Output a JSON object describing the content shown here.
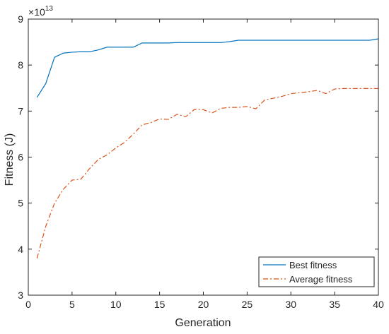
{
  "chart_data": {
    "type": "line",
    "title": "",
    "xlabel": "Generation",
    "ylabel": "Fitness (J)",
    "y_exponent_base": "10",
    "y_exponent_power": "13",
    "xlim": [
      0,
      40
    ],
    "ylim": [
      3,
      9
    ],
    "xticks": [
      0,
      5,
      10,
      15,
      20,
      25,
      30,
      35,
      40
    ],
    "yticks": [
      3,
      4,
      5,
      6,
      7,
      8,
      9
    ],
    "grid": false,
    "legend_position": "bottom-right",
    "x": [
      1,
      2,
      3,
      4,
      5,
      6,
      7,
      8,
      9,
      10,
      11,
      12,
      13,
      14,
      15,
      16,
      17,
      18,
      19,
      20,
      21,
      22,
      23,
      24,
      25,
      26,
      27,
      28,
      29,
      30,
      31,
      32,
      33,
      34,
      35,
      36,
      37,
      38,
      39,
      40
    ],
    "series": [
      {
        "name": "Best fitness",
        "color": "#0072BD",
        "line_style": "solid",
        "values": [
          7.3,
          7.6,
          8.17,
          8.26,
          8.28,
          8.29,
          8.29,
          8.33,
          8.39,
          8.39,
          8.39,
          8.39,
          8.48,
          8.48,
          8.48,
          8.48,
          8.49,
          8.49,
          8.49,
          8.49,
          8.49,
          8.49,
          8.51,
          8.54,
          8.54,
          8.54,
          8.54,
          8.54,
          8.54,
          8.54,
          8.54,
          8.54,
          8.54,
          8.54,
          8.54,
          8.54,
          8.54,
          8.54,
          8.54,
          8.57
        ]
      },
      {
        "name": "Average fitness",
        "color": "#D95319",
        "line_style": "dashdot",
        "values": [
          3.8,
          4.5,
          5.0,
          5.3,
          5.5,
          5.52,
          5.75,
          5.95,
          6.05,
          6.2,
          6.32,
          6.5,
          6.7,
          6.75,
          6.83,
          6.82,
          6.93,
          6.88,
          7.04,
          7.03,
          6.96,
          7.06,
          7.08,
          7.08,
          7.1,
          7.05,
          7.24,
          7.28,
          7.32,
          7.38,
          7.4,
          7.42,
          7.45,
          7.38,
          7.48,
          7.49,
          7.49,
          7.49,
          7.49,
          7.49
        ]
      }
    ]
  }
}
